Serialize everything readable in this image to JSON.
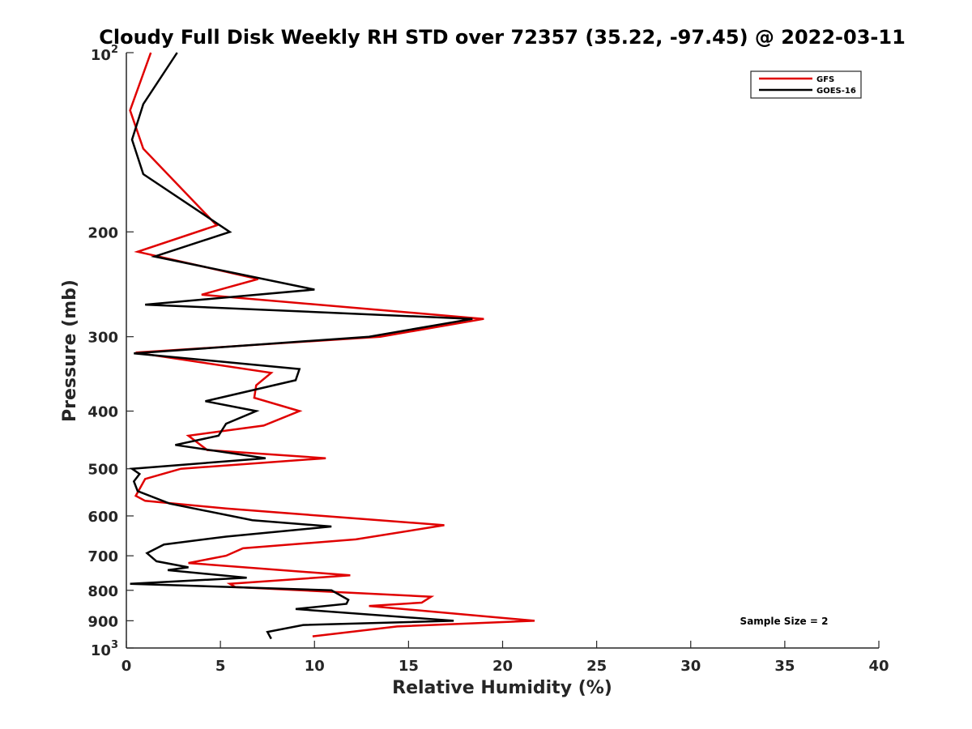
{
  "chart_data": {
    "type": "line",
    "title": "Cloudy Full Disk Weekly RH STD over 72357 (35.22, -97.45) @ 2022-03-11",
    "xlabel": "Relative Humidity (%)",
    "ylabel": "Pressure (mb)",
    "xlim": [
      0,
      40
    ],
    "ylim": [
      100,
      1000
    ],
    "yscale": "log",
    "yreverse": true,
    "grid": false,
    "legend_position": "top-right",
    "xticks": [
      0,
      5,
      10,
      15,
      20,
      25,
      30,
      35,
      40
    ],
    "xtick_labels": [
      "0",
      "5",
      "10",
      "15",
      "20",
      "25",
      "30",
      "35",
      "40"
    ],
    "yticks": [
      200,
      300,
      400,
      500,
      600,
      700,
      800,
      900
    ],
    "ytick_labels": [
      "200",
      "300",
      "400",
      "500",
      "600",
      "700",
      "800",
      "900"
    ],
    "yedge_labels": {
      "top": {
        "base": "10",
        "exp": "2"
      },
      "bottom": {
        "base": "10",
        "exp": "3"
      }
    },
    "annotation": "Sample Size = 2",
    "series": [
      {
        "name": "GFS",
        "color": "#e00000",
        "x": [
          1.3,
          0.2,
          0.9,
          4.8,
          0.6,
          7.0,
          4.0,
          19.0,
          13.5,
          0.5,
          7.7,
          6.9,
          6.8,
          9.2,
          7.3,
          3.3,
          4.3,
          10.6,
          2.9,
          1.0,
          0.5,
          1.0,
          5.3,
          16.9,
          12.2,
          6.2,
          5.3,
          3.3,
          11.9,
          5.5,
          5.8,
          16.2,
          15.7,
          12.9,
          21.7,
          14.4,
          9.9
        ],
        "y": [
          100,
          125,
          145,
          195,
          216,
          240,
          255,
          280,
          300,
          319,
          345,
          362,
          380,
          400,
          423,
          440,
          465,
          480,
          500,
          520,
          555,
          566,
          583,
          622,
          657,
          680,
          700,
          720,
          755,
          780,
          790,
          820,
          839,
          850,
          900,
          920,
          956
        ]
      },
      {
        "name": "GOES-16",
        "color": "#000000",
        "x": [
          2.7,
          0.9,
          0.3,
          0.9,
          5.5,
          1.5,
          10.0,
          1.0,
          18.4,
          12.9,
          0.4,
          9.2,
          9.0,
          4.2,
          6.9,
          5.3,
          4.9,
          2.6,
          7.4,
          0.3,
          0.7,
          0.4,
          0.6,
          2.3,
          6.7,
          10.9,
          5.3,
          2.0,
          1.1,
          1.6,
          3.3,
          2.2,
          6.4,
          0.2,
          10.9,
          11.8,
          11.7,
          9.0,
          17.4,
          9.4,
          7.5,
          7.7
        ],
        "y": [
          100,
          122,
          140,
          160,
          200,
          220,
          250,
          265,
          280,
          300,
          320,
          340,
          355,
          385,
          400,
          420,
          440,
          456,
          480,
          500,
          510,
          525,
          545,
          572,
          610,
          625,
          650,
          670,
          693,
          715,
          732,
          740,
          762,
          780,
          800,
          830,
          843,
          860,
          900,
          915,
          940,
          965
        ]
      }
    ]
  }
}
